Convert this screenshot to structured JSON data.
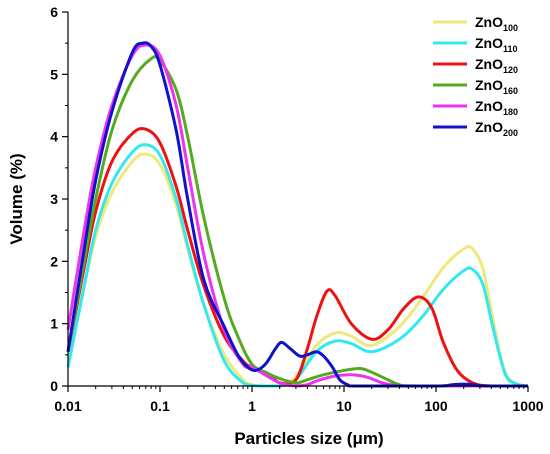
{
  "chart_data": {
    "type": "line",
    "xlabel": "Particles size (μm)",
    "ylabel": "Volume (%)",
    "xscale": "log",
    "xlim": [
      0.01,
      1000
    ],
    "ylim": [
      0,
      6
    ],
    "x_ticks": [
      "0.01",
      "0.1",
      "1",
      "10",
      "100",
      "1000"
    ],
    "y_ticks": [
      "0",
      "1",
      "2",
      "3",
      "4",
      "5",
      "6"
    ],
    "grid": false,
    "legend_position": "top-right",
    "series": [
      {
        "name": "ZnO100",
        "label_base": "ZnO",
        "label_sub": "100",
        "color": "#f0e87a",
        "points": [
          [
            0.01,
            0.45
          ],
          [
            0.015,
            1.6
          ],
          [
            0.02,
            2.4
          ],
          [
            0.03,
            3.1
          ],
          [
            0.05,
            3.6
          ],
          [
            0.07,
            3.72
          ],
          [
            0.1,
            3.55
          ],
          [
            0.15,
            2.9
          ],
          [
            0.2,
            2.2
          ],
          [
            0.3,
            1.3
          ],
          [
            0.5,
            0.5
          ],
          [
            0.8,
            0.1
          ],
          [
            1,
            0.02
          ],
          [
            1.3,
            0
          ],
          [
            2,
            0
          ],
          [
            3,
            0.15
          ],
          [
            5,
            0.65
          ],
          [
            8,
            0.85
          ],
          [
            12,
            0.8
          ],
          [
            20,
            0.65
          ],
          [
            40,
            0.95
          ],
          [
            70,
            1.4
          ],
          [
            120,
            1.9
          ],
          [
            200,
            2.2
          ],
          [
            250,
            2.2
          ],
          [
            320,
            1.9
          ],
          [
            400,
            1.2
          ],
          [
            500,
            0.5
          ],
          [
            600,
            0.15
          ],
          [
            800,
            0.02
          ],
          [
            1000,
            0
          ]
        ]
      },
      {
        "name": "ZnO110",
        "label_base": "ZnO",
        "label_sub": "110",
        "color": "#33e8ee",
        "points": [
          [
            0.01,
            0.3
          ],
          [
            0.015,
            1.6
          ],
          [
            0.02,
            2.5
          ],
          [
            0.03,
            3.25
          ],
          [
            0.05,
            3.75
          ],
          [
            0.07,
            3.87
          ],
          [
            0.1,
            3.7
          ],
          [
            0.15,
            3.0
          ],
          [
            0.2,
            2.25
          ],
          [
            0.3,
            1.3
          ],
          [
            0.5,
            0.4
          ],
          [
            0.8,
            0.05
          ],
          [
            1,
            0.01
          ],
          [
            1.3,
            0
          ],
          [
            2,
            0
          ],
          [
            3,
            0.1
          ],
          [
            5,
            0.55
          ],
          [
            8,
            0.72
          ],
          [
            12,
            0.68
          ],
          [
            20,
            0.55
          ],
          [
            40,
            0.75
          ],
          [
            70,
            1.1
          ],
          [
            120,
            1.55
          ],
          [
            200,
            1.85
          ],
          [
            250,
            1.87
          ],
          [
            320,
            1.65
          ],
          [
            400,
            1.05
          ],
          [
            500,
            0.45
          ],
          [
            600,
            0.12
          ],
          [
            800,
            0.02
          ],
          [
            1000,
            0
          ]
        ]
      },
      {
        "name": "ZnO120",
        "label_base": "ZnO",
        "label_sub": "120",
        "color": "#ee1111",
        "points": [
          [
            0.01,
            0.55
          ],
          [
            0.015,
            1.9
          ],
          [
            0.02,
            2.8
          ],
          [
            0.03,
            3.6
          ],
          [
            0.05,
            4.05
          ],
          [
            0.07,
            4.12
          ],
          [
            0.1,
            3.9
          ],
          [
            0.15,
            3.2
          ],
          [
            0.2,
            2.5
          ],
          [
            0.3,
            1.6
          ],
          [
            0.5,
            0.8
          ],
          [
            0.8,
            0.4
          ],
          [
            1,
            0.3
          ],
          [
            1.5,
            0.2
          ],
          [
            2,
            0.05
          ],
          [
            3,
            0.1
          ],
          [
            4,
            0.6
          ],
          [
            5,
            1.1
          ],
          [
            6.5,
            1.52
          ],
          [
            8,
            1.45
          ],
          [
            12,
            1.0
          ],
          [
            20,
            0.75
          ],
          [
            30,
            0.9
          ],
          [
            45,
            1.25
          ],
          [
            65,
            1.43
          ],
          [
            90,
            1.25
          ],
          [
            120,
            0.7
          ],
          [
            170,
            0.25
          ],
          [
            250,
            0.05
          ],
          [
            400,
            0
          ],
          [
            1000,
            0
          ]
        ]
      },
      {
        "name": "ZnO160",
        "label_base": "ZnO",
        "label_sub": "160",
        "color": "#55aa22",
        "points": [
          [
            0.01,
            0.55
          ],
          [
            0.015,
            2.0
          ],
          [
            0.02,
            3.0
          ],
          [
            0.03,
            4.1
          ],
          [
            0.05,
            4.9
          ],
          [
            0.08,
            5.25
          ],
          [
            0.1,
            5.22
          ],
          [
            0.15,
            4.75
          ],
          [
            0.2,
            4.0
          ],
          [
            0.3,
            2.7
          ],
          [
            0.5,
            1.4
          ],
          [
            0.7,
            0.8
          ],
          [
            1,
            0.35
          ],
          [
            1.5,
            0.2
          ],
          [
            2,
            0.12
          ],
          [
            3,
            0.05
          ],
          [
            4,
            0.1
          ],
          [
            6,
            0.18
          ],
          [
            10,
            0.25
          ],
          [
            15,
            0.28
          ],
          [
            20,
            0.22
          ],
          [
            30,
            0.1
          ],
          [
            40,
            0.02
          ],
          [
            60,
            0
          ],
          [
            1000,
            0
          ]
        ]
      },
      {
        "name": "ZnO180",
        "label_base": "ZnO",
        "label_sub": "180",
        "color": "#ee33ee",
        "points": [
          [
            0.01,
            0.9
          ],
          [
            0.015,
            2.5
          ],
          [
            0.02,
            3.5
          ],
          [
            0.03,
            4.5
          ],
          [
            0.05,
            5.3
          ],
          [
            0.07,
            5.47
          ],
          [
            0.1,
            5.3
          ],
          [
            0.15,
            4.5
          ],
          [
            0.2,
            3.5
          ],
          [
            0.3,
            2.1
          ],
          [
            0.5,
            0.9
          ],
          [
            0.8,
            0.35
          ],
          [
            1,
            0.3
          ],
          [
            1.5,
            0.15
          ],
          [
            2,
            0.05
          ],
          [
            3,
            0
          ],
          [
            4,
            0.02
          ],
          [
            5,
            0.08
          ],
          [
            8,
            0.16
          ],
          [
            12,
            0.18
          ],
          [
            18,
            0.14
          ],
          [
            25,
            0.06
          ],
          [
            35,
            0.01
          ],
          [
            50,
            0
          ],
          [
            1000,
            0
          ]
        ]
      },
      {
        "name": "ZnO200",
        "label_base": "ZnO",
        "label_sub": "200",
        "color": "#1111cc",
        "points": [
          [
            0.01,
            0.55
          ],
          [
            0.015,
            2.2
          ],
          [
            0.02,
            3.3
          ],
          [
            0.03,
            4.4
          ],
          [
            0.05,
            5.35
          ],
          [
            0.065,
            5.5
          ],
          [
            0.08,
            5.45
          ],
          [
            0.1,
            5.15
          ],
          [
            0.15,
            4.1
          ],
          [
            0.2,
            3.0
          ],
          [
            0.3,
            1.7
          ],
          [
            0.5,
            0.95
          ],
          [
            0.7,
            0.5
          ],
          [
            0.9,
            0.3
          ],
          [
            1.1,
            0.25
          ],
          [
            1.4,
            0.35
          ],
          [
            1.8,
            0.6
          ],
          [
            2.1,
            0.7
          ],
          [
            2.6,
            0.6
          ],
          [
            3.3,
            0.48
          ],
          [
            4,
            0.5
          ],
          [
            5,
            0.55
          ],
          [
            6,
            0.48
          ],
          [
            7.5,
            0.3
          ],
          [
            9,
            0.1
          ],
          [
            11,
            0.02
          ],
          [
            14,
            0
          ],
          [
            100,
            0
          ],
          [
            150,
            0.02
          ],
          [
            200,
            0.03
          ],
          [
            260,
            0.02
          ],
          [
            350,
            0
          ],
          [
            1000,
            0
          ]
        ]
      }
    ]
  }
}
